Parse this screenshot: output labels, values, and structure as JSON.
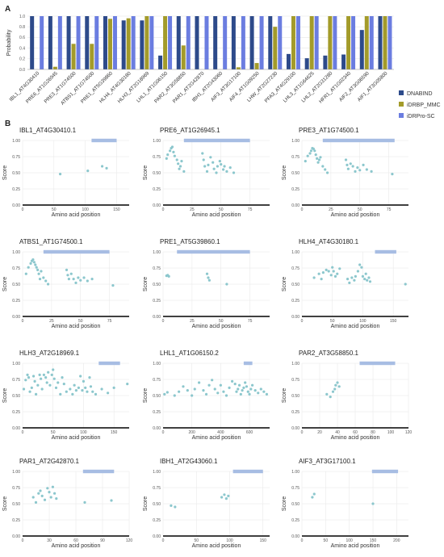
{
  "panel_labels": {
    "a": "A",
    "b": "B"
  },
  "colors": {
    "DNABIND": "#2d4a8a",
    "iDRBP_MMC": "#a39b2a",
    "iDRPro-SC": "#6b7de0",
    "point": "#8cc7cd",
    "bar": "#a7bde3",
    "grid": "#e6e6e6",
    "axis": "#000000"
  },
  "chart_data": [
    {
      "type": "bar",
      "ylabel": "Probability",
      "xlabel": "",
      "ylim": [
        0,
        1.0
      ],
      "yticks": [
        0.0,
        0.2,
        0.4,
        0.6,
        0.8,
        1.0
      ],
      "legend_position": "right",
      "categories": [
        "IBL1_AT4G30410",
        "PRE6_AT1G26945",
        "PRE3_AT1G74500",
        "ATBS1_AT1G74500",
        "PRE1_AT5G39860",
        "HLH4_AT4G30180",
        "HLH3_AT2G18969",
        "LHL1_AT1G06150",
        "PAR2_AT3G58850",
        "PAR1_AT2G42870",
        "IBH1_AT2G43060",
        "AIF3_AT3G17100",
        "AIF4_AT1G09250",
        "LHW_AT2G27230",
        "PFA3_AT4G29100",
        "LHL3_AT1G64625",
        "LHL2_AT2G31280",
        "HFR1_AT1G02340",
        "AIF2_AT3G06590",
        "AIF1_AT3G05800"
      ],
      "series": [
        {
          "name": "DNABIND",
          "values": [
            1.0,
            1.0,
            1.0,
            1.0,
            1.0,
            0.92,
            0.92,
            0.26,
            1.0,
            1.0,
            1.0,
            1.0,
            1.0,
            1.0,
            0.29,
            0.21,
            0.26,
            0.28,
            0.74,
            1.0
          ]
        },
        {
          "name": "iDRBP_MMC",
          "values": [
            0.0,
            0.05,
            0.48,
            0.48,
            0.95,
            0.96,
            1.0,
            1.0,
            0.45,
            0.0,
            0.0,
            0.04,
            0.12,
            0.8,
            1.0,
            1.0,
            1.0,
            1.0,
            1.0,
            1.0
          ]
        },
        {
          "name": "iDRPro-SC",
          "values": [
            1.0,
            1.0,
            1.0,
            1.0,
            1.0,
            1.0,
            1.0,
            1.0,
            1.0,
            1.0,
            1.0,
            1.0,
            1.0,
            1.0,
            1.0,
            1.0,
            1.0,
            1.0,
            1.0,
            1.0
          ]
        }
      ]
    },
    {
      "type": "scatter",
      "title": "IBL1_AT4G30410.1",
      "xlabel": "Amino acid position",
      "ylabel": "Score",
      "xlim": [
        0,
        170
      ],
      "ylim": [
        0,
        1.0
      ],
      "xticks": [
        0,
        50,
        100,
        150
      ],
      "yticks": [
        0.0,
        0.25,
        0.5,
        0.75,
        1.0
      ],
      "region": [
        110,
        150
      ],
      "x": [
        60,
        104,
        127,
        134
      ],
      "y": [
        0.48,
        0.53,
        0.6,
        0.57
      ]
    },
    {
      "type": "scatter",
      "title": "PRE6_AT1G26945.1",
      "xlabel": "Amino acid position",
      "ylabel": "Score",
      "xlim": [
        0,
        92
      ],
      "ylim": [
        0,
        1.0
      ],
      "xticks": [
        0,
        25,
        50,
        75
      ],
      "yticks": [
        0.0,
        0.25,
        0.5,
        0.75,
        1.0
      ],
      "region": [
        18,
        75
      ],
      "x": [
        3,
        4,
        6,
        7,
        8,
        9,
        10,
        12,
        13,
        14,
        15,
        16,
        18,
        34,
        35,
        36,
        38,
        39,
        41,
        43,
        44,
        46,
        47,
        49,
        50,
        52,
        53,
        55,
        58,
        61
      ],
      "y": [
        0.72,
        0.78,
        0.84,
        0.88,
        0.9,
        0.82,
        0.76,
        0.7,
        0.64,
        0.56,
        0.6,
        0.68,
        0.52,
        0.8,
        0.7,
        0.6,
        0.52,
        0.62,
        0.74,
        0.66,
        0.56,
        0.5,
        0.6,
        0.68,
        0.63,
        0.55,
        0.6,
        0.52,
        0.58,
        0.5
      ]
    },
    {
      "type": "scatter",
      "title": "PRE3_AT1G74500.1",
      "xlabel": "Amino acid position",
      "ylabel": "Score",
      "xlim": [
        0,
        92
      ],
      "ylim": [
        0,
        1.0
      ],
      "xticks": [
        0,
        25,
        50,
        75
      ],
      "yticks": [
        0.0,
        0.25,
        0.5,
        0.75,
        1.0
      ],
      "region": [
        18,
        80
      ],
      "x": [
        3,
        5,
        7,
        8,
        9,
        10,
        11,
        12,
        13,
        14,
        15,
        16,
        18,
        20,
        22,
        38,
        39,
        40,
        42,
        44,
        46,
        48,
        50,
        53,
        56,
        60,
        78
      ],
      "y": [
        0.68,
        0.76,
        0.8,
        0.84,
        0.88,
        0.87,
        0.84,
        0.78,
        0.72,
        0.66,
        0.7,
        0.74,
        0.6,
        0.55,
        0.5,
        0.7,
        0.62,
        0.56,
        0.64,
        0.6,
        0.52,
        0.58,
        0.54,
        0.62,
        0.55,
        0.52,
        0.48
      ]
    },
    {
      "type": "scatter",
      "title": "ATBS1_AT1G74500.1",
      "xlabel": "Amino acid position",
      "ylabel": "Score",
      "xlim": [
        0,
        92
      ],
      "ylim": [
        0,
        1.0
      ],
      "xticks": [
        0,
        25,
        50,
        75
      ],
      "yticks": [
        0.0,
        0.25,
        0.5,
        0.75,
        1.0
      ],
      "region": [
        18,
        75
      ],
      "x": [
        3,
        5,
        7,
        8,
        9,
        10,
        11,
        12,
        13,
        14,
        15,
        16,
        18,
        20,
        22,
        38,
        39,
        40,
        42,
        44,
        46,
        48,
        50,
        53,
        56,
        60,
        78
      ],
      "y": [
        0.66,
        0.76,
        0.82,
        0.86,
        0.88,
        0.84,
        0.8,
        0.76,
        0.72,
        0.66,
        0.58,
        0.7,
        0.6,
        0.55,
        0.5,
        0.72,
        0.64,
        0.58,
        0.66,
        0.58,
        0.52,
        0.6,
        0.56,
        0.6,
        0.55,
        0.58,
        0.48
      ]
    },
    {
      "type": "scatter",
      "title": "PRE1_AT5G39860.1",
      "xlabel": "Amino acid position",
      "ylabel": "Score",
      "xlim": [
        0,
        92
      ],
      "ylim": [
        0,
        1.0
      ],
      "xticks": [
        0,
        25,
        50,
        75
      ],
      "yticks": [
        0.0,
        0.25,
        0.5,
        0.75,
        1.0
      ],
      "region": [
        12,
        75
      ],
      "x": [
        3,
        4,
        5,
        38,
        39,
        40,
        55
      ],
      "y": [
        0.63,
        0.64,
        0.62,
        0.66,
        0.6,
        0.56,
        0.5
      ]
    },
    {
      "type": "scatter",
      "title": "HLH4_AT4G30180.1",
      "xlabel": "Amino acid position",
      "ylabel": "Score",
      "xlim": [
        0,
        175
      ],
      "ylim": [
        0,
        1.0
      ],
      "xticks": [
        0,
        50,
        100,
        150
      ],
      "yticks": [
        0.0,
        0.25,
        0.5,
        0.75,
        1.0
      ],
      "region": [
        120,
        155
      ],
      "x": [
        20,
        28,
        32,
        35,
        40,
        44,
        48,
        50,
        52,
        55,
        58,
        62,
        75,
        78,
        82,
        86,
        88,
        92,
        95,
        98,
        100,
        103,
        105,
        107,
        110,
        112,
        170
      ],
      "y": [
        0.6,
        0.66,
        0.58,
        0.68,
        0.72,
        0.7,
        0.64,
        0.76,
        0.7,
        0.62,
        0.66,
        0.74,
        0.58,
        0.52,
        0.6,
        0.56,
        0.62,
        0.7,
        0.8,
        0.76,
        0.62,
        0.58,
        0.66,
        0.56,
        0.6,
        0.54,
        0.5
      ]
    },
    {
      "type": "scatter",
      "title": "HLH3_AT2G18969.1",
      "xlabel": "Amino acid position",
      "ylabel": "Score",
      "xlim": [
        0,
        175
      ],
      "ylim": [
        0,
        1.0
      ],
      "xticks": [
        0,
        50,
        100,
        150
      ],
      "yticks": [
        0.0,
        0.25,
        0.5,
        0.75,
        1.0
      ],
      "region": [
        125,
        160
      ],
      "x": [
        2,
        5,
        8,
        10,
        12,
        15,
        18,
        20,
        22,
        25,
        28,
        30,
        32,
        35,
        38,
        40,
        42,
        45,
        48,
        50,
        52,
        55,
        58,
        62,
        65,
        68,
        72,
        78,
        82,
        85,
        88,
        92,
        95,
        98,
        100,
        103,
        106,
        110,
        112,
        115,
        120,
        130,
        140,
        150,
        172
      ],
      "y": [
        0.6,
        0.74,
        0.82,
        0.78,
        0.56,
        0.62,
        0.8,
        0.72,
        0.52,
        0.66,
        0.82,
        0.76,
        0.6,
        0.82,
        0.78,
        0.7,
        0.86,
        0.66,
        0.82,
        0.9,
        0.76,
        0.62,
        0.7,
        0.52,
        0.78,
        0.68,
        0.56,
        0.6,
        0.52,
        0.66,
        0.58,
        0.62,
        0.8,
        0.58,
        0.72,
        0.62,
        0.56,
        0.78,
        0.64,
        0.56,
        0.52,
        0.6,
        0.54,
        0.62,
        0.68
      ]
    },
    {
      "type": "scatter",
      "title": "LHL1_AT1G06150.2",
      "xlabel": "Amino acid position",
      "ylabel": "Score",
      "xlim": [
        0,
        740
      ],
      "ylim": [
        0,
        1.0
      ],
      "xticks": [
        0,
        200,
        400,
        600
      ],
      "yticks": [
        0.0,
        0.25,
        0.5,
        0.75,
        1.0
      ],
      "region": [
        560,
        620
      ],
      "x": [
        10,
        30,
        80,
        110,
        140,
        170,
        200,
        220,
        250,
        280,
        300,
        320,
        340,
        360,
        380,
        400,
        420,
        440,
        460,
        480,
        500,
        510,
        520,
        530,
        540,
        550,
        560,
        570,
        580,
        590,
        600,
        610,
        620,
        640,
        660,
        680,
        700,
        720
      ],
      "y": [
        0.52,
        0.55,
        0.5,
        0.56,
        0.64,
        0.58,
        0.5,
        0.6,
        0.7,
        0.58,
        0.52,
        0.66,
        0.74,
        0.6,
        0.54,
        0.66,
        0.56,
        0.5,
        0.62,
        0.72,
        0.68,
        0.56,
        0.6,
        0.66,
        0.52,
        0.58,
        0.62,
        0.7,
        0.64,
        0.56,
        0.52,
        0.6,
        0.66,
        0.58,
        0.54,
        0.6,
        0.56,
        0.52
      ]
    },
    {
      "type": "scatter",
      "title": "PAR2_AT3G58850.1",
      "xlabel": "Amino acid position",
      "ylabel": "Score",
      "xlim": [
        0,
        120
      ],
      "ylim": [
        0,
        1.0
      ],
      "xticks": [
        0,
        20,
        40,
        60,
        80,
        100,
        120
      ],
      "yticks": [
        0.0,
        0.25,
        0.5,
        0.75,
        1.0
      ],
      "region": [
        65,
        105
      ],
      "x": [
        28,
        32,
        35,
        37,
        38,
        40,
        42
      ],
      "y": [
        0.52,
        0.48,
        0.56,
        0.6,
        0.66,
        0.7,
        0.64
      ]
    },
    {
      "type": "scatter",
      "title": "PAR1_AT2G42870.1",
      "xlabel": "Amino acid position",
      "ylabel": "Score",
      "xlim": [
        0,
        120
      ],
      "ylim": [
        0,
        1.0
      ],
      "xticks": [
        0,
        30,
        60,
        90,
        120
      ],
      "yticks": [
        0.0,
        0.25,
        0.5,
        0.75,
        1.0
      ],
      "region": [
        68,
        103
      ],
      "x": [
        12,
        15,
        18,
        20,
        22,
        25,
        28,
        30,
        32,
        34,
        36,
        38,
        70,
        100
      ],
      "y": [
        0.6,
        0.52,
        0.66,
        0.7,
        0.62,
        0.56,
        0.74,
        0.68,
        0.6,
        0.76,
        0.66,
        0.58,
        0.52,
        0.55
      ]
    },
    {
      "type": "scatter",
      "title": "IBH1_AT2G43060.1",
      "xlabel": "Amino acid position",
      "ylabel": "Score",
      "xlim": [
        0,
        160
      ],
      "ylim": [
        0,
        1.0
      ],
      "xticks": [
        0,
        50,
        100,
        150
      ],
      "yticks": [
        0.0,
        0.25,
        0.5,
        0.75,
        1.0
      ],
      "region": [
        105,
        150
      ],
      "x": [
        12,
        18,
        88,
        92,
        95,
        98
      ],
      "y": [
        0.47,
        0.45,
        0.6,
        0.64,
        0.58,
        0.62
      ]
    },
    {
      "type": "scatter",
      "title": "AIF3_AT3G17100.1",
      "xlabel": "Amino acid position",
      "ylabel": "Score",
      "xlim": [
        0,
        225
      ],
      "ylim": [
        0,
        1.0
      ],
      "xticks": [
        0,
        50,
        100,
        150,
        200
      ],
      "yticks": [
        0.0,
        0.25,
        0.5,
        0.75,
        1.0
      ],
      "region": [
        148,
        203
      ],
      "x": [
        22,
        26,
        150
      ],
      "y": [
        0.6,
        0.65,
        0.5
      ]
    }
  ]
}
